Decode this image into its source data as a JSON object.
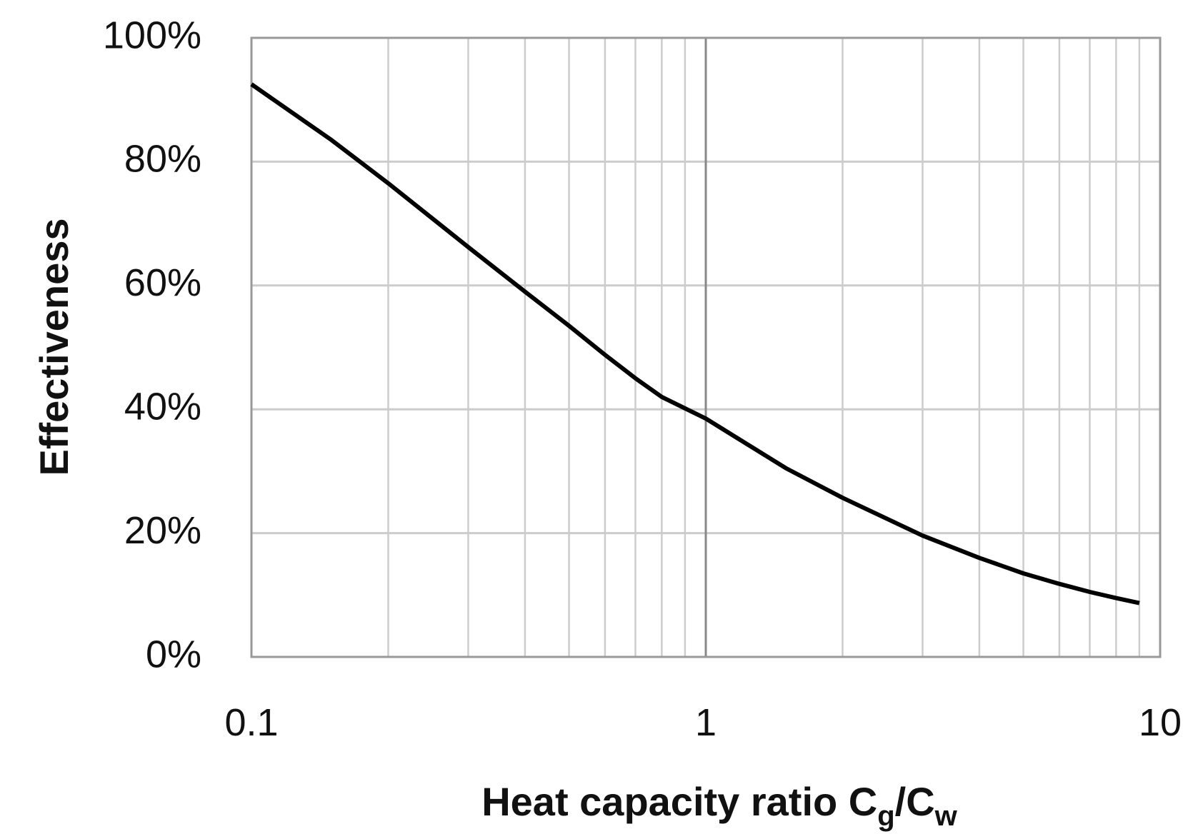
{
  "chart_data": {
    "type": "line",
    "title": "",
    "xlabel": {
      "main": "Heat capacity ratio C",
      "sub1": "g",
      "sep": "/C",
      "sub2": "w"
    },
    "ylabel": "Effectiveness",
    "x_scale": "log",
    "xlim": [
      0.1,
      10
    ],
    "ylim": [
      0,
      100
    ],
    "x_ticks": [
      {
        "value": 0.1,
        "label": "0.1"
      },
      {
        "value": 1,
        "label": "1"
      },
      {
        "value": 10,
        "label": "10"
      }
    ],
    "y_ticks": [
      {
        "value": 0,
        "label": "0%"
      },
      {
        "value": 20,
        "label": "20%"
      },
      {
        "value": 40,
        "label": "40%"
      },
      {
        "value": 60,
        "label": "60%"
      },
      {
        "value": 80,
        "label": "80%"
      },
      {
        "value": 100,
        "label": "100%"
      }
    ],
    "grid": true,
    "legend": "none",
    "series": [
      {
        "name": "Effectiveness",
        "color": "#000000",
        "x": [
          0.1,
          0.15,
          0.2,
          0.3,
          0.4,
          0.5,
          0.6,
          0.7,
          0.8,
          1,
          1.5,
          2,
          3,
          4,
          5,
          6,
          7,
          8,
          9
        ],
        "y": [
          92.5,
          83.5,
          76.5,
          66.2,
          59,
          53.5,
          48.8,
          45,
          42,
          38.5,
          30.5,
          25.7,
          19.6,
          16,
          13.5,
          11.8,
          10.5,
          9.5,
          8.7
        ]
      }
    ]
  },
  "colors": {
    "gridline": "#cccccc",
    "major_gridline": "#888888",
    "axis": "#999999",
    "series": "#000000"
  }
}
